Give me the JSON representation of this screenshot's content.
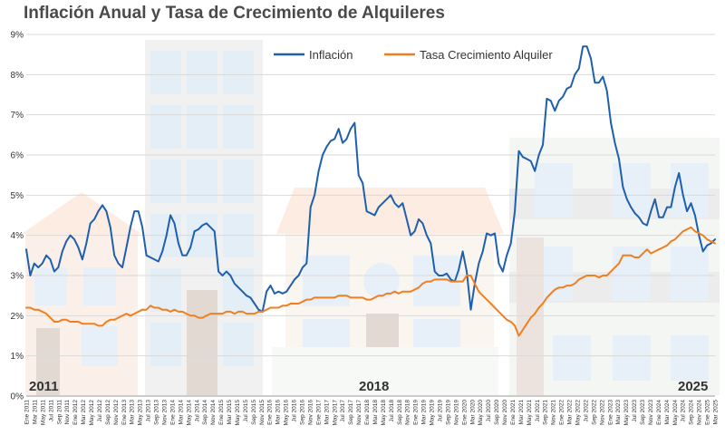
{
  "title": "Inflación Anual y Tasa de Crecimiento de Alquileres",
  "colors": {
    "inflation": "#1f5fae",
    "rent": "#f07f22",
    "grid": "#d9d9d9",
    "axis": "#9a9a9a"
  },
  "year_labels": [
    "2011",
    "2018",
    "2025"
  ],
  "chart_data": {
    "type": "line",
    "title": "Inflación Anual y Tasa de Crecimiento de Alquileres",
    "ylim": [
      0,
      9
    ],
    "yticks": [
      "0%",
      "1%",
      "2%",
      "3%",
      "4%",
      "5%",
      "6%",
      "7%",
      "8%",
      "9%"
    ],
    "grid": true,
    "legend_position": "top-center",
    "x_start": "Ene 2011",
    "x_end": "Mar 2025",
    "x_tick_labels": [
      "Ene 2011",
      "Mar 2011",
      "May 2011",
      "Jul 2011",
      "Sep 2011",
      "Nov 2011",
      "Ene 2012",
      "Mar 2012",
      "May 2012",
      "Jul 2012",
      "Sep 2012",
      "Nov 2012",
      "Ene 2013",
      "Mar 2013",
      "May 2013",
      "Jul 2013",
      "Sep 2013",
      "Nov 2013",
      "Ene 2014",
      "Mar 2014",
      "May 2014",
      "Jul 2014",
      "Sep 2014",
      "Nov 2014",
      "Ene 2015",
      "Mar 2015",
      "May 2015",
      "Jul 2015",
      "Sep 2015",
      "Nov 2015",
      "Ene 2016",
      "Mar 2016",
      "May 2016",
      "Jul 2016",
      "Sep 2016",
      "Nov 2016",
      "Ene 2017",
      "Mar 2017",
      "May 2017",
      "Jul 2017",
      "Sep 2017",
      "Nov 2017",
      "Ene 2018",
      "Mar 2018",
      "May 2018",
      "Jul 2018",
      "Sep 2018",
      "Nov 2018",
      "Ene 2019",
      "Mar 2019",
      "May 2019",
      "Jul 2019",
      "Sep 2019",
      "Nov 2019",
      "Ene 2020",
      "Mar 2020",
      "May 2020",
      "Jul 2020",
      "Sep 2020",
      "Nov 2020",
      "Ene 2021",
      "Mar 2021",
      "May 2021",
      "Jul 2021",
      "Sep 2021",
      "Nov 2021",
      "Ene 2022",
      "Mar 2022",
      "May 2022",
      "Jul 2022",
      "Sep 2022",
      "Nov 2022",
      "Ene 2023",
      "Mar 2023",
      "May 2023",
      "Jul 2023",
      "Sep 2023",
      "Nov 2023",
      "Ene 2024",
      "Mar 2024",
      "May 2024",
      "Jul 2024",
      "Sep 2024",
      "Nov 2024",
      "Ene 2025",
      "Mar 2025"
    ],
    "series": [
      {
        "name": "Inflación",
        "color": "#1f5fae",
        "values": [
          3.65,
          3.0,
          3.3,
          3.2,
          3.3,
          3.5,
          3.4,
          3.1,
          3.2,
          3.6,
          3.85,
          4.0,
          3.9,
          3.7,
          3.4,
          3.8,
          4.3,
          4.4,
          4.6,
          4.75,
          4.6,
          4.2,
          3.5,
          3.3,
          3.2,
          3.7,
          4.2,
          4.6,
          4.6,
          4.2,
          3.5,
          3.45,
          3.4,
          3.35,
          3.6,
          4.0,
          4.5,
          4.3,
          3.8,
          3.5,
          3.5,
          3.7,
          4.1,
          4.15,
          4.25,
          4.3,
          4.2,
          4.1,
          3.1,
          3.0,
          3.1,
          3.0,
          2.8,
          2.7,
          2.6,
          2.5,
          2.45,
          2.3,
          2.15,
          2.1,
          2.6,
          2.75,
          2.55,
          2.6,
          2.55,
          2.6,
          2.75,
          2.9,
          3.0,
          3.2,
          3.3,
          4.7,
          5.0,
          5.6,
          6.0,
          6.2,
          6.35,
          6.4,
          6.65,
          6.3,
          6.4,
          6.65,
          6.8,
          5.5,
          5.3,
          4.6,
          4.55,
          4.5,
          4.7,
          4.8,
          4.9,
          5.0,
          4.8,
          4.7,
          4.8,
          4.4,
          4.0,
          4.1,
          4.4,
          4.3,
          4.0,
          3.8,
          3.1,
          3.0,
          3.0,
          3.05,
          2.9,
          2.85,
          3.15,
          3.6,
          3.1,
          2.15,
          2.8,
          3.3,
          3.6,
          4.05,
          4.0,
          4.05,
          3.3,
          3.1,
          3.5,
          3.8,
          4.6,
          6.1,
          5.95,
          5.9,
          5.85,
          5.6,
          6.0,
          6.25,
          7.4,
          7.35,
          7.1,
          7.35,
          7.45,
          7.65,
          7.7,
          8.0,
          8.15,
          8.7,
          8.7,
          8.4,
          7.8,
          7.8,
          7.95,
          7.6,
          6.8,
          6.3,
          5.9,
          5.2,
          4.9,
          4.7,
          4.55,
          4.45,
          4.3,
          4.25,
          4.6,
          4.9,
          4.45,
          4.45,
          4.7,
          4.7,
          5.2,
          5.55,
          5.0,
          4.6,
          4.8,
          4.5,
          4.0,
          3.6,
          3.75,
          3.8,
          3.9
        ]
      },
      {
        "name": "Tasa Crecimiento Alquiler",
        "color": "#f07f22",
        "values": [
          2.2,
          2.2,
          2.15,
          2.15,
          2.1,
          2.05,
          1.95,
          1.85,
          1.85,
          1.9,
          1.9,
          1.85,
          1.85,
          1.85,
          1.8,
          1.8,
          1.8,
          1.8,
          1.75,
          1.75,
          1.85,
          1.9,
          1.9,
          1.95,
          2.0,
          2.05,
          2.0,
          2.05,
          2.1,
          2.15,
          2.15,
          2.25,
          2.2,
          2.2,
          2.15,
          2.15,
          2.1,
          2.15,
          2.1,
          2.1,
          2.05,
          2.0,
          2.0,
          1.95,
          1.95,
          2.0,
          2.05,
          2.05,
          2.05,
          2.05,
          2.1,
          2.1,
          2.05,
          2.1,
          2.1,
          2.05,
          2.05,
          2.05,
          2.1,
          2.1,
          2.15,
          2.2,
          2.2,
          2.2,
          2.25,
          2.25,
          2.3,
          2.3,
          2.3,
          2.35,
          2.4,
          2.4,
          2.45,
          2.45,
          2.45,
          2.45,
          2.45,
          2.45,
          2.5,
          2.5,
          2.5,
          2.45,
          2.45,
          2.45,
          2.45,
          2.4,
          2.4,
          2.45,
          2.5,
          2.5,
          2.55,
          2.55,
          2.6,
          2.55,
          2.6,
          2.6,
          2.6,
          2.65,
          2.7,
          2.8,
          2.85,
          2.85,
          2.9,
          2.9,
          2.9,
          2.9,
          2.85,
          2.85,
          2.85,
          2.85,
          3.0,
          3.0,
          2.8,
          2.6,
          2.5,
          2.4,
          2.3,
          2.2,
          2.1,
          2.0,
          1.9,
          1.85,
          1.75,
          1.5,
          1.65,
          1.8,
          1.95,
          2.05,
          2.2,
          2.3,
          2.45,
          2.55,
          2.65,
          2.7,
          2.7,
          2.75,
          2.75,
          2.8,
          2.9,
          2.95,
          3.0,
          3.0,
          3.0,
          2.95,
          3.0,
          3.0,
          3.1,
          3.2,
          3.3,
          3.5,
          3.5,
          3.5,
          3.45,
          3.45,
          3.55,
          3.65,
          3.55,
          3.6,
          3.65,
          3.7,
          3.75,
          3.85,
          3.9,
          4.0,
          4.1,
          4.15,
          4.2,
          4.1,
          4.05,
          4.0,
          3.9,
          3.85,
          3.8
        ]
      }
    ]
  }
}
